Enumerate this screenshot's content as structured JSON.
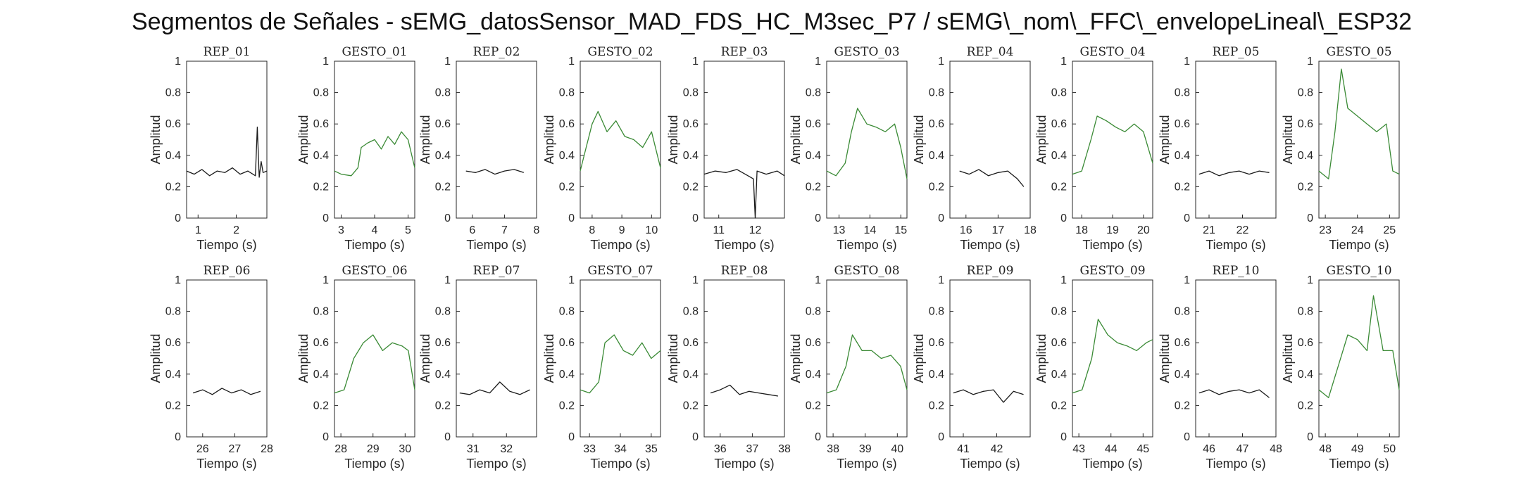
{
  "figure_title": "Segmentos de Señales - sEMG_datosSensor_MAD_FDS_HC_M3sec_P7 / sEMG\\_nom\\_FFC\\_envelopeLineal\\_ESP32",
  "colors": {
    "rep": "#1a1a1a",
    "gesto": "#3a8a35",
    "axis": "#262626",
    "background": "#ffffff"
  },
  "chart_data": [
    {
      "type": "line",
      "title": "REP_01",
      "xlabel": "Tiempo (s)",
      "ylabel": "Amplitud",
      "xlim": [
        0.7,
        2.8
      ],
      "ylim": [
        0,
        1
      ],
      "xticks": [
        1,
        2
      ],
      "yticks": [
        0,
        0.2,
        0.4,
        0.6,
        0.8,
        1
      ],
      "series": [
        {
          "color": "rep",
          "x": [
            0.7,
            0.9,
            1.1,
            1.3,
            1.5,
            1.7,
            1.9,
            2.1,
            2.3,
            2.5,
            2.55,
            2.6,
            2.65,
            2.7,
            2.8
          ],
          "y": [
            0.3,
            0.28,
            0.31,
            0.27,
            0.3,
            0.29,
            0.32,
            0.28,
            0.3,
            0.27,
            0.58,
            0.26,
            0.36,
            0.29,
            0.3
          ]
        }
      ]
    },
    {
      "type": "line",
      "title": "GESTO_01",
      "xlabel": "Tiempo (s)",
      "ylabel": "Amplitud",
      "xlim": [
        2.8,
        5.2
      ],
      "ylim": [
        0,
        1
      ],
      "xticks": [
        3,
        4,
        5
      ],
      "yticks": [
        0,
        0.2,
        0.4,
        0.6,
        0.8,
        1
      ],
      "series": [
        {
          "color": "gesto",
          "x": [
            2.8,
            3.0,
            3.3,
            3.5,
            3.6,
            3.8,
            4.0,
            4.2,
            4.4,
            4.6,
            4.8,
            5.0,
            5.2
          ],
          "y": [
            0.3,
            0.28,
            0.27,
            0.32,
            0.45,
            0.48,
            0.5,
            0.44,
            0.52,
            0.47,
            0.55,
            0.5,
            0.32
          ]
        }
      ]
    },
    {
      "type": "line",
      "title": "REP_02",
      "xlabel": "Tiempo (s)",
      "ylabel": "Amplitud",
      "xlim": [
        5.5,
        8
      ],
      "ylim": [
        0,
        1
      ],
      "xticks": [
        6,
        7,
        8
      ],
      "yticks": [
        0,
        0.2,
        0.4,
        0.6,
        0.8,
        1
      ],
      "series": [
        {
          "color": "rep",
          "x": [
            5.8,
            6.1,
            6.4,
            6.7,
            7.0,
            7.3,
            7.6
          ],
          "y": [
            0.3,
            0.29,
            0.31,
            0.28,
            0.3,
            0.31,
            0.29
          ]
        }
      ]
    },
    {
      "type": "line",
      "title": "GESTO_02",
      "xlabel": "Tiempo (s)",
      "ylabel": "Amplitud",
      "xlim": [
        7.6,
        10.3
      ],
      "ylim": [
        0,
        1
      ],
      "xticks": [
        8,
        9,
        10
      ],
      "yticks": [
        0,
        0.2,
        0.4,
        0.6,
        0.8,
        1
      ],
      "series": [
        {
          "color": "gesto",
          "x": [
            7.6,
            7.8,
            8.0,
            8.2,
            8.5,
            8.8,
            9.1,
            9.4,
            9.7,
            10.0,
            10.3
          ],
          "y": [
            0.3,
            0.45,
            0.6,
            0.68,
            0.55,
            0.62,
            0.52,
            0.5,
            0.45,
            0.55,
            0.32
          ]
        }
      ]
    },
    {
      "type": "line",
      "title": "REP_03",
      "xlabel": "Tiempo (s)",
      "ylabel": "Amplitud",
      "xlim": [
        10.6,
        12.8
      ],
      "ylim": [
        0,
        1
      ],
      "xticks": [
        11,
        12
      ],
      "yticks": [
        0,
        0.2,
        0.4,
        0.6,
        0.8,
        1
      ],
      "series": [
        {
          "color": "rep",
          "x": [
            10.6,
            10.9,
            11.2,
            11.5,
            11.8,
            11.95,
            12.0,
            12.05,
            12.3,
            12.6,
            12.8
          ],
          "y": [
            0.28,
            0.3,
            0.29,
            0.31,
            0.27,
            0.25,
            0.0,
            0.3,
            0.28,
            0.3,
            0.27
          ]
        }
      ]
    },
    {
      "type": "line",
      "title": "GESTO_03",
      "xlabel": "Tiempo (s)",
      "ylabel": "Amplitud",
      "xlim": [
        12.6,
        15.2
      ],
      "ylim": [
        0,
        1
      ],
      "xticks": [
        13,
        14,
        15
      ],
      "yticks": [
        0,
        0.2,
        0.4,
        0.6,
        0.8,
        1
      ],
      "series": [
        {
          "color": "gesto",
          "x": [
            12.6,
            12.9,
            13.2,
            13.4,
            13.6,
            13.9,
            14.2,
            14.5,
            14.8,
            15.0,
            15.2
          ],
          "y": [
            0.3,
            0.27,
            0.35,
            0.55,
            0.7,
            0.6,
            0.58,
            0.55,
            0.6,
            0.45,
            0.25
          ]
        }
      ]
    },
    {
      "type": "line",
      "title": "REP_04",
      "xlabel": "Tiempo (s)",
      "ylabel": "Amplitud",
      "xlim": [
        15.5,
        18
      ],
      "ylim": [
        0,
        1
      ],
      "xticks": [
        16,
        17,
        18
      ],
      "yticks": [
        0,
        0.2,
        0.4,
        0.6,
        0.8,
        1
      ],
      "series": [
        {
          "color": "rep",
          "x": [
            15.8,
            16.1,
            16.4,
            16.7,
            17.0,
            17.3,
            17.6,
            17.8
          ],
          "y": [
            0.3,
            0.28,
            0.31,
            0.27,
            0.29,
            0.3,
            0.25,
            0.2
          ]
        }
      ]
    },
    {
      "type": "line",
      "title": "GESTO_04",
      "xlabel": "Tiempo (s)",
      "ylabel": "Amplitud",
      "xlim": [
        17.7,
        20.3
      ],
      "ylim": [
        0,
        1
      ],
      "xticks": [
        18,
        19,
        20
      ],
      "yticks": [
        0,
        0.2,
        0.4,
        0.6,
        0.8,
        1
      ],
      "series": [
        {
          "color": "gesto",
          "x": [
            17.7,
            18.0,
            18.3,
            18.5,
            18.8,
            19.1,
            19.4,
            19.7,
            20.0,
            20.3
          ],
          "y": [
            0.28,
            0.3,
            0.5,
            0.65,
            0.62,
            0.58,
            0.55,
            0.6,
            0.55,
            0.35
          ]
        }
      ]
    },
    {
      "type": "line",
      "title": "REP_05",
      "xlabel": "Tiempo (s)",
      "ylabel": "Amplitud",
      "xlim": [
        20.6,
        23
      ],
      "ylim": [
        0,
        1
      ],
      "xticks": [
        21,
        22
      ],
      "yticks": [
        0,
        0.2,
        0.4,
        0.6,
        0.8,
        1
      ],
      "series": [
        {
          "color": "rep",
          "x": [
            20.7,
            21.0,
            21.3,
            21.6,
            21.9,
            22.2,
            22.5,
            22.8
          ],
          "y": [
            0.28,
            0.3,
            0.27,
            0.29,
            0.3,
            0.28,
            0.3,
            0.29
          ]
        }
      ]
    },
    {
      "type": "line",
      "title": "GESTO_05",
      "xlabel": "Tiempo (s)",
      "ylabel": "Amplitud",
      "xlim": [
        22.8,
        25.3
      ],
      "ylim": [
        0,
        1
      ],
      "xticks": [
        23,
        24,
        25
      ],
      "yticks": [
        0,
        0.2,
        0.4,
        0.6,
        0.8,
        1
      ],
      "series": [
        {
          "color": "gesto",
          "x": [
            22.8,
            23.1,
            23.3,
            23.5,
            23.7,
            24.0,
            24.3,
            24.6,
            24.9,
            25.1,
            25.3
          ],
          "y": [
            0.3,
            0.25,
            0.55,
            0.95,
            0.7,
            0.65,
            0.6,
            0.55,
            0.6,
            0.3,
            0.28
          ]
        }
      ]
    },
    {
      "type": "line",
      "title": "REP_06",
      "xlabel": "Tiempo (s)",
      "ylabel": "Amplitud",
      "xlim": [
        25.5,
        28
      ],
      "ylim": [
        0,
        1
      ],
      "xticks": [
        26,
        27,
        28
      ],
      "yticks": [
        0,
        0.2,
        0.4,
        0.6,
        0.8,
        1
      ],
      "series": [
        {
          "color": "rep",
          "x": [
            25.7,
            26.0,
            26.3,
            26.6,
            26.9,
            27.2,
            27.5,
            27.8
          ],
          "y": [
            0.28,
            0.3,
            0.27,
            0.31,
            0.28,
            0.3,
            0.27,
            0.29
          ]
        }
      ]
    },
    {
      "type": "line",
      "title": "GESTO_06",
      "xlabel": "Tiempo (s)",
      "ylabel": "Amplitud",
      "xlim": [
        27.8,
        30.3
      ],
      "ylim": [
        0,
        1
      ],
      "xticks": [
        28,
        29,
        30
      ],
      "yticks": [
        0,
        0.2,
        0.4,
        0.6,
        0.8,
        1
      ],
      "series": [
        {
          "color": "gesto",
          "x": [
            27.8,
            28.1,
            28.4,
            28.7,
            29.0,
            29.3,
            29.6,
            29.9,
            30.1,
            30.3
          ],
          "y": [
            0.28,
            0.3,
            0.5,
            0.6,
            0.65,
            0.55,
            0.6,
            0.58,
            0.55,
            0.3
          ]
        }
      ]
    },
    {
      "type": "line",
      "title": "REP_07",
      "xlabel": "Tiempo (s)",
      "ylabel": "Amplitud",
      "xlim": [
        30.5,
        32.9
      ],
      "ylim": [
        0,
        1
      ],
      "xticks": [
        31,
        32
      ],
      "yticks": [
        0,
        0.2,
        0.4,
        0.6,
        0.8,
        1
      ],
      "series": [
        {
          "color": "rep",
          "x": [
            30.6,
            30.9,
            31.2,
            31.5,
            31.8,
            32.1,
            32.4,
            32.7
          ],
          "y": [
            0.28,
            0.27,
            0.3,
            0.28,
            0.35,
            0.29,
            0.27,
            0.3
          ]
        }
      ]
    },
    {
      "type": "line",
      "title": "GESTO_07",
      "xlabel": "Tiempo (s)",
      "ylabel": "Amplitud",
      "xlim": [
        32.7,
        35.3
      ],
      "ylim": [
        0,
        1
      ],
      "xticks": [
        33,
        34,
        35
      ],
      "yticks": [
        0,
        0.2,
        0.4,
        0.6,
        0.8,
        1
      ],
      "series": [
        {
          "color": "gesto",
          "x": [
            32.7,
            33.0,
            33.3,
            33.5,
            33.8,
            34.1,
            34.4,
            34.7,
            35.0,
            35.3
          ],
          "y": [
            0.3,
            0.28,
            0.35,
            0.6,
            0.65,
            0.55,
            0.52,
            0.6,
            0.5,
            0.55
          ]
        }
      ]
    },
    {
      "type": "line",
      "title": "REP_08",
      "xlabel": "Tiempo (s)",
      "ylabel": "Amplitud",
      "xlim": [
        35.5,
        38
      ],
      "ylim": [
        0,
        1
      ],
      "xticks": [
        36,
        37,
        38
      ],
      "yticks": [
        0,
        0.2,
        0.4,
        0.6,
        0.8,
        1
      ],
      "series": [
        {
          "color": "rep",
          "x": [
            35.7,
            36.0,
            36.3,
            36.6,
            36.9,
            37.2,
            37.5,
            37.8
          ],
          "y": [
            0.28,
            0.3,
            0.33,
            0.27,
            0.29,
            0.28,
            0.27,
            0.26
          ]
        }
      ]
    },
    {
      "type": "line",
      "title": "GESTO_08",
      "xlabel": "Tiempo (s)",
      "ylabel": "Amplitud",
      "xlim": [
        37.8,
        40.3
      ],
      "ylim": [
        0,
        1
      ],
      "xticks": [
        38,
        39,
        40
      ],
      "yticks": [
        0,
        0.2,
        0.4,
        0.6,
        0.8,
        1
      ],
      "series": [
        {
          "color": "gesto",
          "x": [
            37.8,
            38.1,
            38.4,
            38.6,
            38.9,
            39.2,
            39.5,
            39.8,
            40.1,
            40.3
          ],
          "y": [
            0.28,
            0.3,
            0.45,
            0.65,
            0.55,
            0.55,
            0.5,
            0.52,
            0.45,
            0.3
          ]
        }
      ]
    },
    {
      "type": "line",
      "title": "REP_09",
      "xlabel": "Tiempo (s)",
      "ylabel": "Amplitud",
      "xlim": [
        40.6,
        43
      ],
      "ylim": [
        0,
        1
      ],
      "xticks": [
        41,
        42
      ],
      "yticks": [
        0,
        0.2,
        0.4,
        0.6,
        0.8,
        1
      ],
      "series": [
        {
          "color": "rep",
          "x": [
            40.7,
            41.0,
            41.3,
            41.6,
            41.9,
            42.2,
            42.5,
            42.8
          ],
          "y": [
            0.28,
            0.3,
            0.27,
            0.29,
            0.3,
            0.22,
            0.29,
            0.27
          ]
        }
      ]
    },
    {
      "type": "line",
      "title": "GESTO_09",
      "xlabel": "Tiempo (s)",
      "ylabel": "Amplitud",
      "xlim": [
        42.8,
        45.3
      ],
      "ylim": [
        0,
        1
      ],
      "xticks": [
        43,
        44,
        45
      ],
      "yticks": [
        0,
        0.2,
        0.4,
        0.6,
        0.8,
        1
      ],
      "series": [
        {
          "color": "gesto",
          "x": [
            42.8,
            43.1,
            43.4,
            43.6,
            43.9,
            44.2,
            44.5,
            44.8,
            45.1,
            45.3
          ],
          "y": [
            0.28,
            0.3,
            0.5,
            0.75,
            0.65,
            0.6,
            0.58,
            0.55,
            0.6,
            0.62
          ]
        }
      ]
    },
    {
      "type": "line",
      "title": "REP_10",
      "xlabel": "Tiempo (s)",
      "ylabel": "Amplitud",
      "xlim": [
        45.6,
        48
      ],
      "ylim": [
        0,
        1
      ],
      "xticks": [
        46,
        47,
        48
      ],
      "yticks": [
        0,
        0.2,
        0.4,
        0.6,
        0.8,
        1
      ],
      "series": [
        {
          "color": "rep",
          "x": [
            45.7,
            46.0,
            46.3,
            46.6,
            46.9,
            47.2,
            47.5,
            47.8
          ],
          "y": [
            0.28,
            0.3,
            0.27,
            0.29,
            0.3,
            0.28,
            0.3,
            0.25
          ]
        }
      ]
    },
    {
      "type": "line",
      "title": "GESTO_10",
      "xlabel": "Tiempo (s)",
      "ylabel": "Amplitud",
      "xlim": [
        47.8,
        50.3
      ],
      "ylim": [
        0,
        1
      ],
      "xticks": [
        48,
        49,
        50
      ],
      "yticks": [
        0,
        0.2,
        0.4,
        0.6,
        0.8,
        1
      ],
      "series": [
        {
          "color": "gesto",
          "x": [
            47.8,
            48.1,
            48.4,
            48.7,
            49.0,
            49.3,
            49.5,
            49.8,
            50.1,
            50.3
          ],
          "y": [
            0.3,
            0.25,
            0.45,
            0.65,
            0.62,
            0.55,
            0.9,
            0.55,
            0.55,
            0.3
          ]
        }
      ]
    }
  ]
}
